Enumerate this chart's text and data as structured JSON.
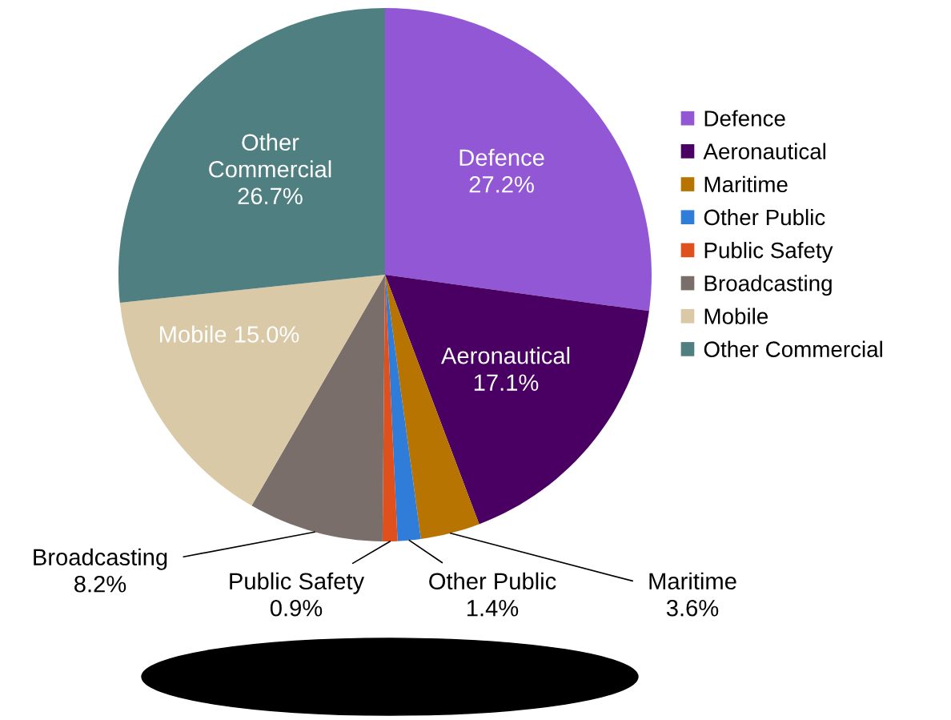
{
  "chart_data": {
    "type": "pie",
    "categories": [
      "Defence",
      "Aeronautical",
      "Maritime",
      "Other Public",
      "Public Safety",
      "Broadcasting",
      "Mobile",
      "Other Commercial"
    ],
    "values": [
      27.2,
      17.1,
      3.6,
      1.4,
      0.9,
      8.2,
      15.0,
      26.7
    ],
    "colors": [
      "#9257d4",
      "#4a0062",
      "#b87400",
      "#2f7dd8",
      "#e0501c",
      "#7a6e6a",
      "#d9c9a6",
      "#507f82"
    ],
    "value_labels": [
      "Defence\n27.2%",
      "Aeronautical\n17.1%",
      "Maritime\n3.6%",
      "Other Public\n1.4%",
      "Public Safety\n0.9%",
      "Broadcasting\n8.2%",
      "Mobile 15.0%",
      "Other\nCommercial\n26.7%"
    ],
    "legend": "right"
  }
}
